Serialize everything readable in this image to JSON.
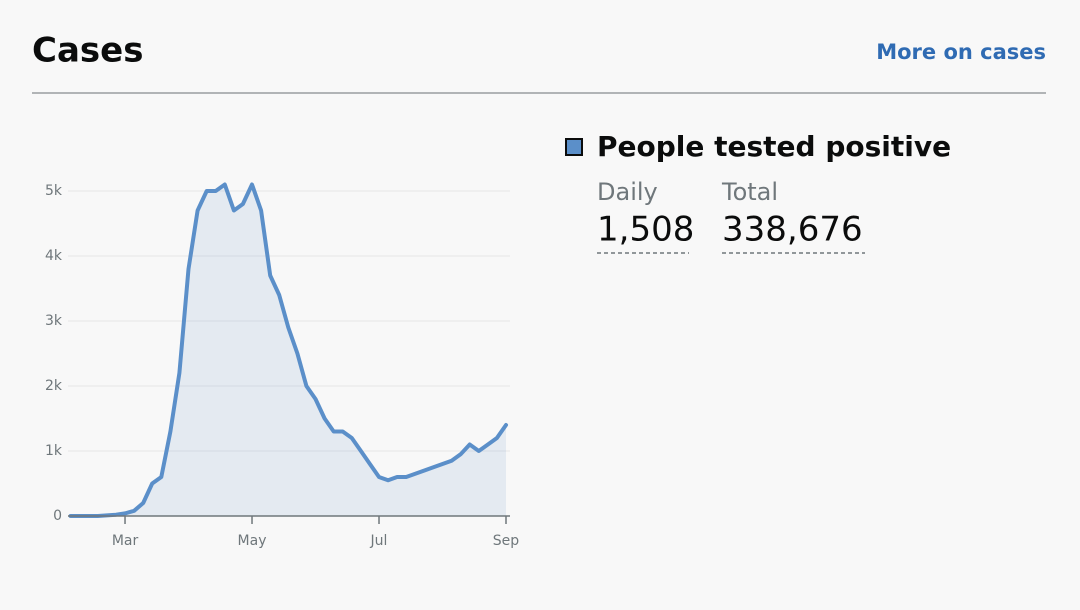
{
  "header": {
    "title": "Cases",
    "link": "More on cases"
  },
  "summary": {
    "daily_label": "Daily",
    "daily_value": "1,508",
    "total_label": "Total",
    "total_value": "338,676"
  },
  "chart_data": {
    "type": "line",
    "categories": [
      null,
      null,
      null,
      null,
      null,
      null,
      "Mar",
      null,
      null,
      null,
      null,
      null,
      null,
      null,
      null,
      null,
      null,
      null,
      null,
      null,
      "May",
      null,
      null,
      null,
      null,
      null,
      null,
      null,
      null,
      null,
      null,
      null,
      null,
      null,
      "Jul",
      null,
      null,
      null,
      null,
      null,
      null,
      null,
      null,
      null,
      null,
      null,
      null,
      null,
      "Sep"
    ],
    "series": [
      {
        "name": "People tested positive",
        "color": "#5b8fc9",
        "values": [
          0,
          0,
          0,
          0,
          10,
          20,
          40,
          80,
          200,
          500,
          600,
          1300,
          2200,
          3800,
          4700,
          5000,
          5000,
          5100,
          4700,
          4800,
          5100,
          4700,
          3700,
          3400,
          2900,
          2500,
          2000,
          1800,
          1500,
          1300,
          1300,
          1200,
          1000,
          800,
          600,
          550,
          600,
          600,
          650,
          700,
          750,
          800,
          850,
          950,
          1100,
          1000,
          1100,
          1200,
          1400
        ]
      }
    ],
    "ylim": [
      0,
      5200
    ],
    "yticks": [
      0,
      {
        "value": 1000,
        "label": "1k"
      },
      {
        "value": 2000,
        "label": "2k"
      },
      {
        "value": 3000,
        "label": "3k"
      },
      {
        "value": 4000,
        "label": "4k"
      },
      {
        "value": 5000,
        "label": "5k"
      }
    ],
    "grid": true
  }
}
